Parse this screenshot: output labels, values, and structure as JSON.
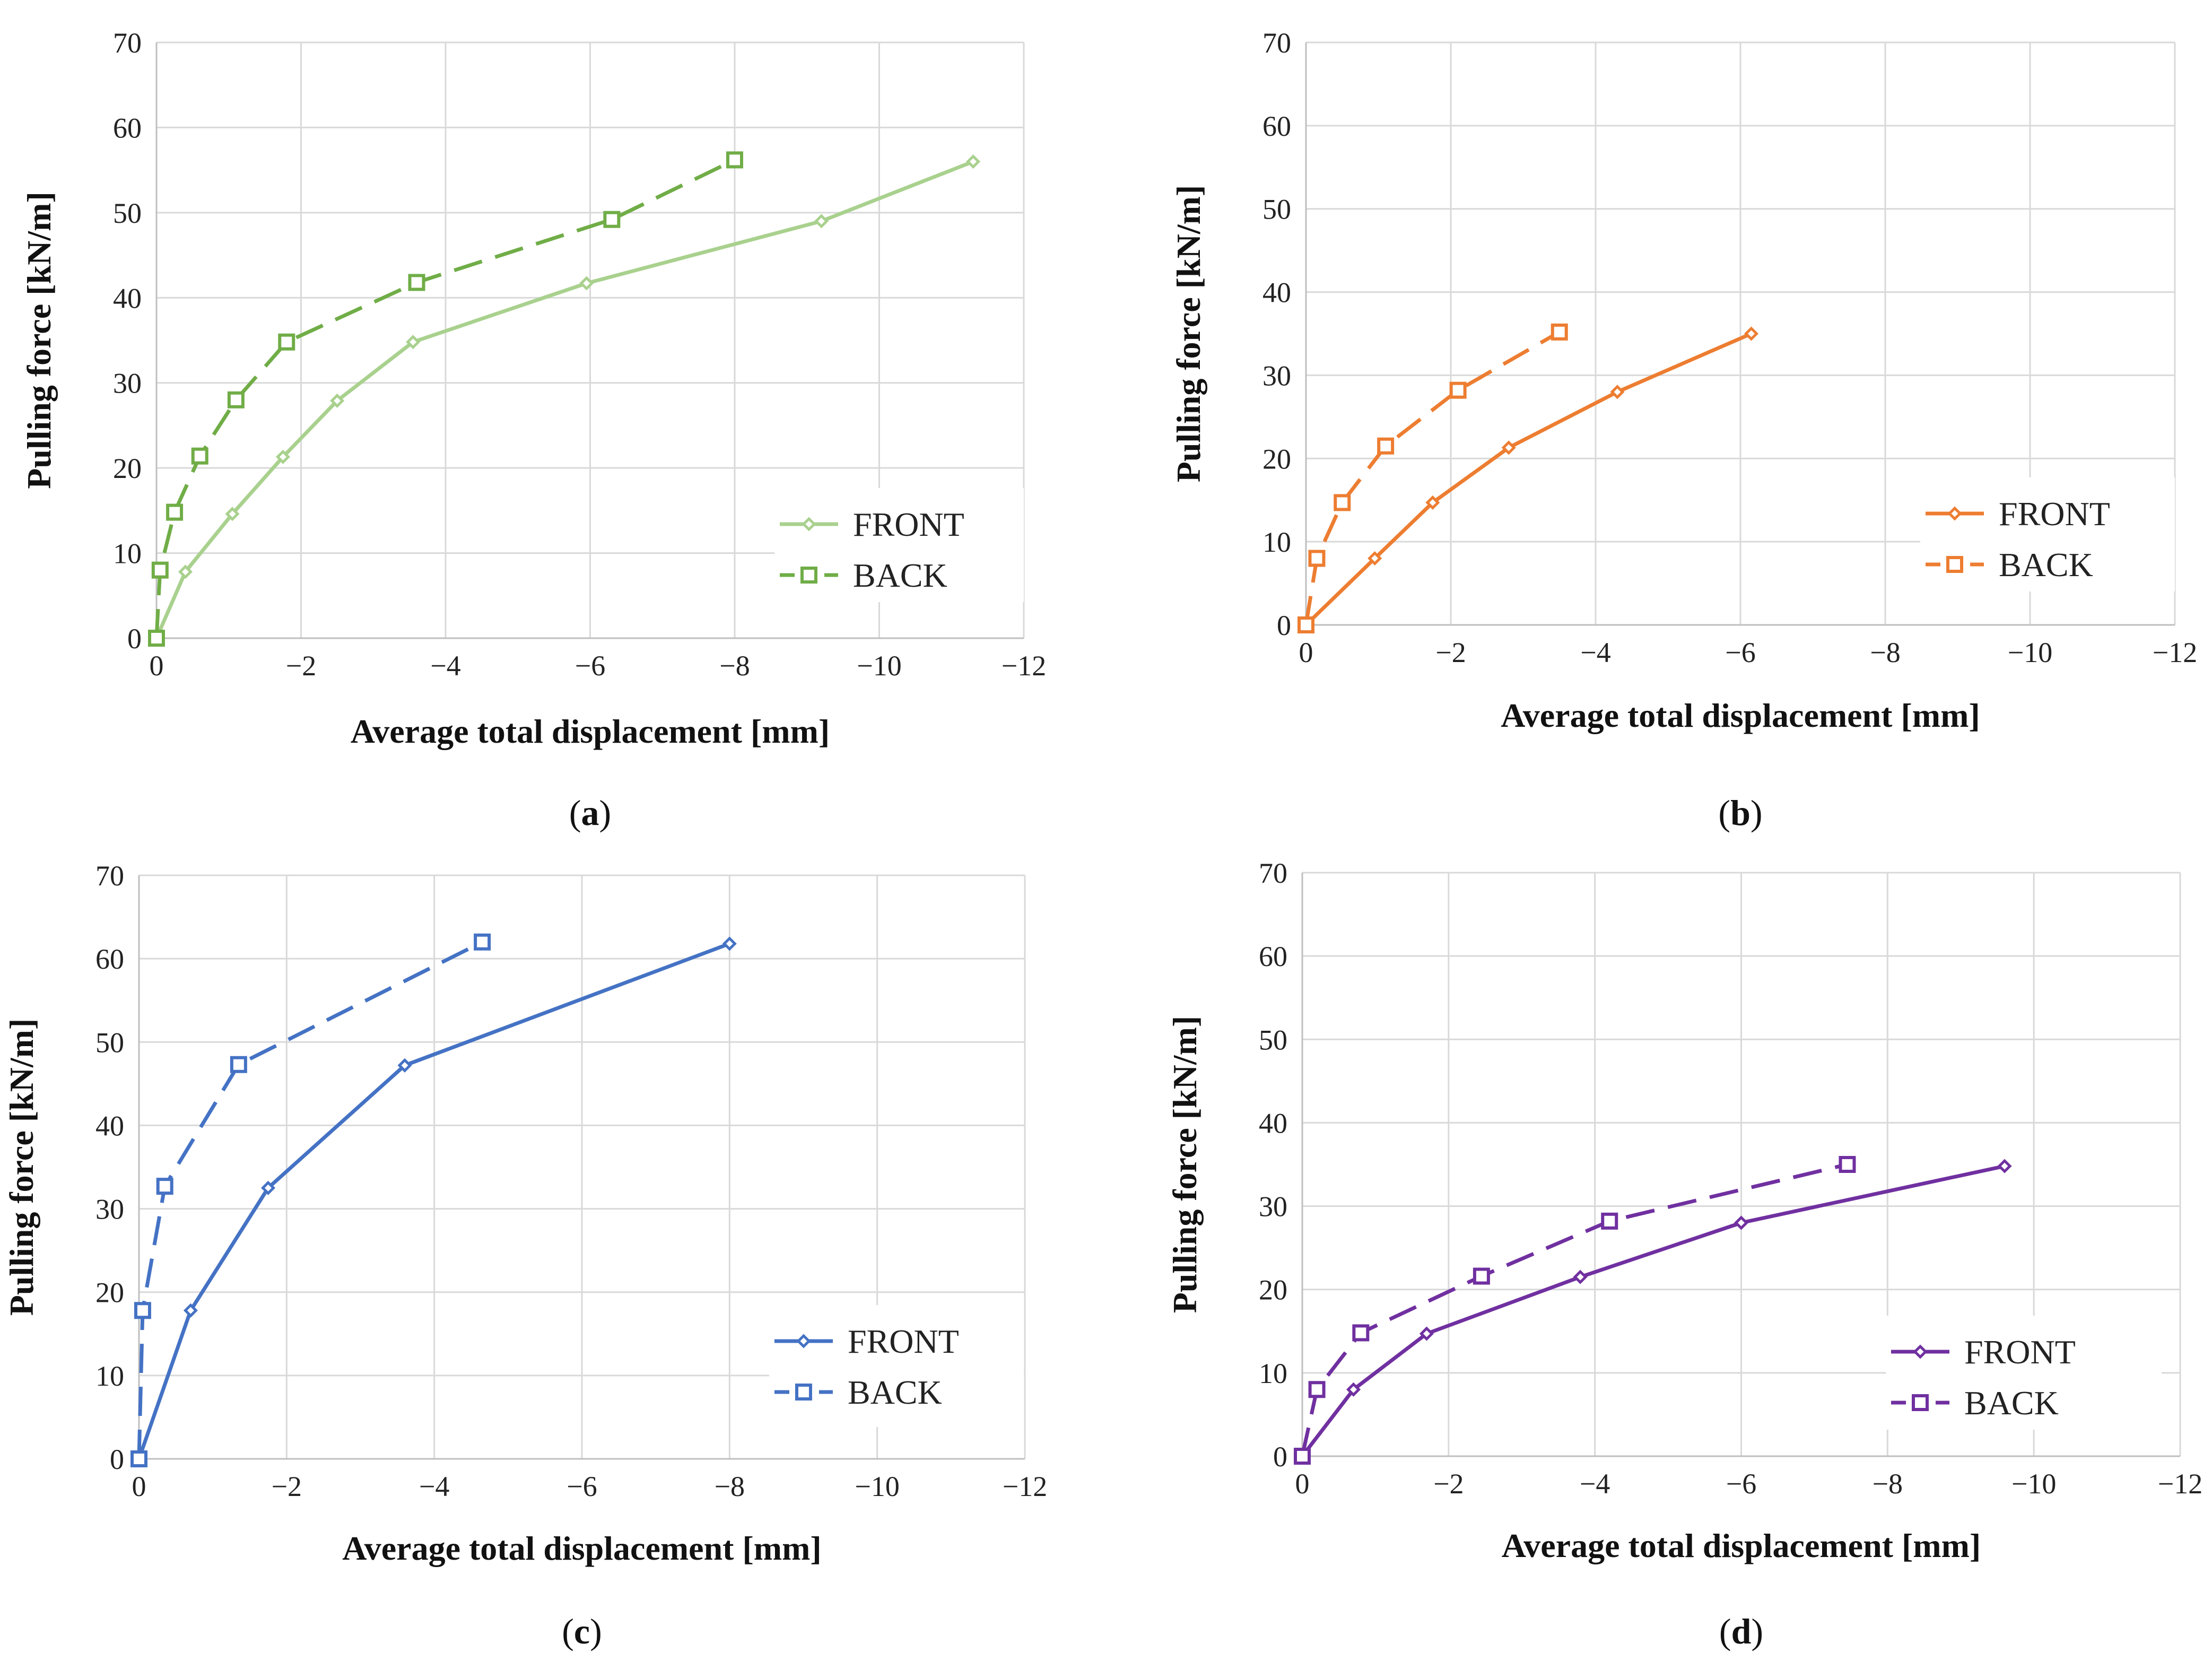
{
  "figure_type": "multi-panel line chart",
  "chart_data": [
    {
      "type": "line",
      "panel_label": "a",
      "title": "",
      "xlabel": "Average total displacement [mm]",
      "ylabel": "Pulling force [kN/m]",
      "xlim": [
        0,
        -12
      ],
      "ylim": [
        0,
        70
      ],
      "xticks": [
        0,
        -2,
        -4,
        -6,
        -8,
        -10,
        -12
      ],
      "yticks": [
        0,
        10,
        20,
        30,
        40,
        50,
        60,
        70
      ],
      "grid": true,
      "legend_position": "bottom-right",
      "series": [
        {
          "name": "FRONT",
          "color": "#a9d18e",
          "line_style": "solid",
          "marker": "diamond",
          "x": [
            0,
            -0.4,
            -1.05,
            -1.75,
            -2.5,
            -3.55,
            -5.95,
            -9.2,
            -11.3
          ],
          "y": [
            0,
            7.8,
            14.6,
            21.3,
            27.9,
            34.8,
            41.7,
            49.0,
            56.0
          ]
        },
        {
          "name": "BACK",
          "color": "#70ad47",
          "line_style": "dashed",
          "marker": "square",
          "x": [
            0,
            -0.05,
            -0.25,
            -0.6,
            -1.1,
            -1.8,
            -3.6,
            -6.3,
            -8.0
          ],
          "y": [
            0,
            8.0,
            14.8,
            21.4,
            28.0,
            34.8,
            41.8,
            49.2,
            56.2
          ]
        }
      ]
    },
    {
      "type": "line",
      "panel_label": "b",
      "title": "",
      "xlabel": "Average total displacement [mm]",
      "ylabel": "Pulling force [kN/m]",
      "xlim": [
        0,
        -12
      ],
      "ylim": [
        0,
        70
      ],
      "xticks": [
        0,
        -2,
        -4,
        -6,
        -8,
        -10,
        -12
      ],
      "yticks": [
        0,
        10,
        20,
        30,
        40,
        50,
        60,
        70
      ],
      "grid": true,
      "legend_position": "bottom-right",
      "series": [
        {
          "name": "FRONT",
          "color": "#ed7d31",
          "line_style": "solid",
          "marker": "diamond",
          "x": [
            0,
            -0.95,
            -1.75,
            -2.8,
            -4.3,
            -6.15
          ],
          "y": [
            0,
            8.0,
            14.7,
            21.3,
            28.0,
            35.0
          ]
        },
        {
          "name": "BACK",
          "color": "#ed7d31",
          "line_style": "dashed",
          "marker": "square",
          "x": [
            0,
            -0.15,
            -0.5,
            -1.1,
            -2.1,
            -3.5
          ],
          "y": [
            0,
            8.0,
            14.7,
            21.5,
            28.2,
            35.2
          ]
        }
      ]
    },
    {
      "type": "line",
      "panel_label": "c",
      "title": "",
      "xlabel": "Average total displacement [mm]",
      "ylabel": "Pulling force [kN/m]",
      "xlim": [
        0,
        -12
      ],
      "ylim": [
        0,
        70
      ],
      "xticks": [
        0,
        -2,
        -4,
        -6,
        -8,
        -10,
        -12
      ],
      "yticks": [
        0,
        10,
        20,
        30,
        40,
        50,
        60,
        70
      ],
      "grid": true,
      "legend_position": "bottom-right",
      "series": [
        {
          "name": "FRONT",
          "color": "#4472c4",
          "line_style": "solid",
          "marker": "diamond",
          "x": [
            0,
            -0.7,
            -1.75,
            -3.6,
            -8.0
          ],
          "y": [
            0,
            17.8,
            32.5,
            47.2,
            61.8
          ]
        },
        {
          "name": "BACK",
          "color": "#4472c4",
          "line_style": "dashed",
          "marker": "square",
          "x": [
            0,
            -0.05,
            -0.35,
            -1.35,
            -4.65
          ],
          "y": [
            0,
            17.8,
            32.7,
            47.3,
            62.0
          ]
        }
      ]
    },
    {
      "type": "line",
      "panel_label": "d",
      "title": "",
      "xlabel": "Average total displacement [mm]",
      "ylabel": "Pulling force [kN/m]",
      "xlim": [
        0,
        -12
      ],
      "ylim": [
        0,
        70
      ],
      "xticks": [
        0,
        -2,
        -4,
        -6,
        -8,
        -10,
        -12
      ],
      "yticks": [
        0,
        10,
        20,
        30,
        40,
        50,
        60,
        70
      ],
      "grid": true,
      "legend_position": "bottom-right",
      "series": [
        {
          "name": "FRONT",
          "color": "#7030a0",
          "line_style": "solid",
          "marker": "diamond",
          "x": [
            0,
            -0.7,
            -1.7,
            -3.8,
            -6.0,
            -9.6
          ],
          "y": [
            0,
            8.0,
            14.7,
            21.5,
            28.0,
            34.8
          ]
        },
        {
          "name": "BACK",
          "color": "#7030a0",
          "line_style": "dashed",
          "marker": "square",
          "x": [
            0,
            -0.2,
            -0.8,
            -2.45,
            -4.2,
            -7.45
          ],
          "y": [
            0,
            8.0,
            14.8,
            21.6,
            28.2,
            35.0
          ]
        }
      ]
    }
  ]
}
